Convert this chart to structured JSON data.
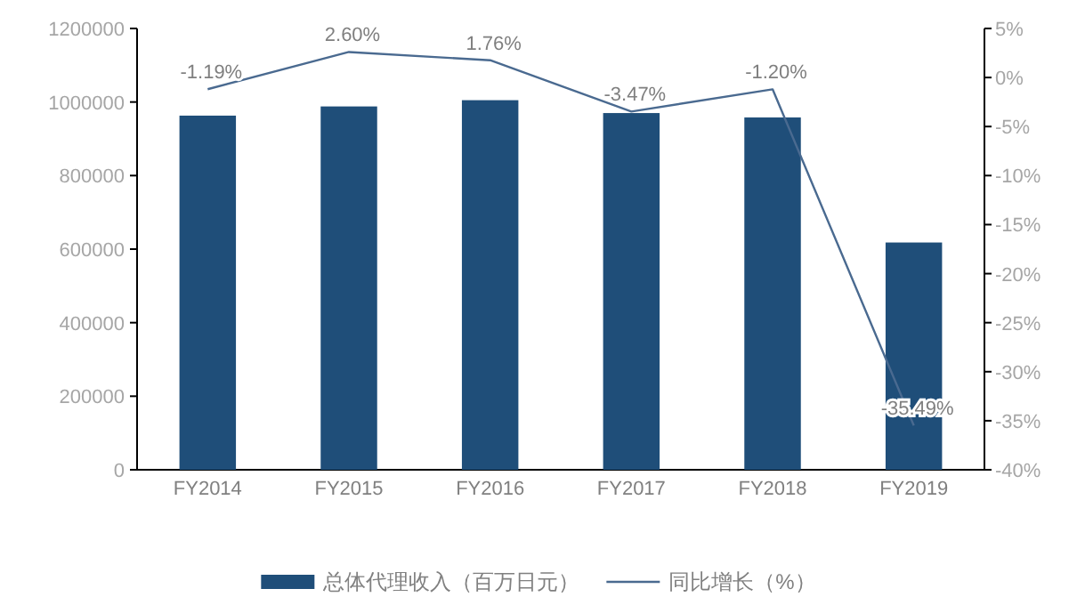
{
  "chart_data": {
    "type": "bar",
    "categories": [
      "FY2014",
      "FY2015",
      "FY2016",
      "FY2017",
      "FY2018",
      "FY2019"
    ],
    "series": [
      {
        "name": "总体代理收入（百万日元）",
        "color": "#1f4e79",
        "values": [
          963000,
          988000,
          1005000,
          970000,
          958000,
          618000
        ]
      },
      {
        "name": "同比增长（%）",
        "type": "line",
        "axis": "y2",
        "color": "#4a6a90",
        "values": [
          -1.19,
          2.6,
          1.76,
          -3.47,
          -1.2,
          -35.49
        ],
        "value_labels": [
          "-1.19%",
          "2.60%",
          "1.76%",
          "-3.47%",
          "-1.20%",
          "-35.49%"
        ]
      }
    ],
    "ylim": [
      0,
      1200000
    ],
    "yticks": [
      0,
      200000,
      400000,
      600000,
      800000,
      1000000,
      1200000
    ],
    "y2lim": [
      -40,
      5
    ],
    "y2ticks": [
      {
        "value": -40,
        "label": "-40%"
      },
      {
        "value": -35,
        "label": "-35%"
      },
      {
        "value": -30,
        "label": "-30%"
      },
      {
        "value": -25,
        "label": "-25%"
      },
      {
        "value": -20,
        "label": "-20%"
      },
      {
        "value": -15,
        "label": "-15%"
      },
      {
        "value": -10,
        "label": "-10%"
      },
      {
        "value": -5,
        "label": "-5%"
      },
      {
        "value": 0,
        "label": "0%"
      },
      {
        "value": 5,
        "label": "5%"
      }
    ],
    "legend": "bottom",
    "grid": false
  }
}
